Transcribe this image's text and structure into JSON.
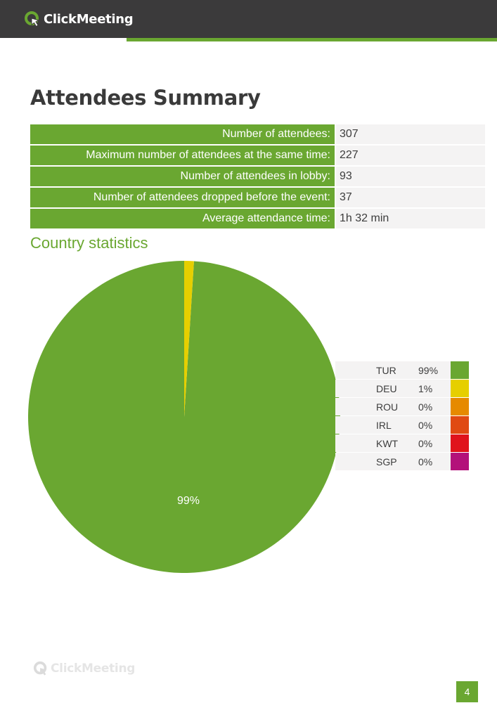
{
  "header": {
    "brand": "ClickMeeting"
  },
  "page_title": "Attendees Summary",
  "summary": [
    {
      "label": "Number of attendees:",
      "value": "307"
    },
    {
      "label": "Maximum number of attendees at the same time:",
      "value": "227"
    },
    {
      "label": "Number of attendees in lobby:",
      "value": "93"
    },
    {
      "label": "Number of attendees dropped before the event:",
      "value": "37"
    },
    {
      "label": "Average attendance time:",
      "value": "1h 32 min"
    }
  ],
  "country_section_title": "Country statistics",
  "chart_data": {
    "type": "pie",
    "slices": [
      {
        "label": "TUR",
        "value": 99,
        "percent_label": "99%",
        "color": "#6aa731"
      },
      {
        "label": "DEU",
        "value": 1,
        "percent_label": "1%",
        "color": "#e6cf00"
      },
      {
        "label": "ROU",
        "value": 0,
        "percent_label": "0%",
        "color": "#e68a00"
      },
      {
        "label": "IRL",
        "value": 0,
        "percent_label": "0%",
        "color": "#e04a12"
      },
      {
        "label": "KWT",
        "value": 0,
        "percent_label": "0%",
        "color": "#e0131c"
      },
      {
        "label": "SGP",
        "value": 0,
        "percent_label": "0%",
        "color": "#b3117a"
      }
    ],
    "slice_labels": [
      "99%"
    ],
    "legend_placement": "right"
  },
  "footer": {
    "brand": "ClickMeeting",
    "page_number": "4"
  }
}
